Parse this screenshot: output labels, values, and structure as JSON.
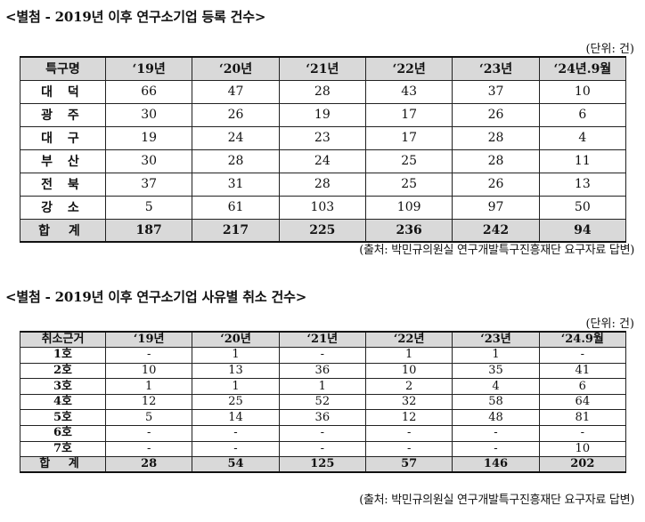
{
  "section1": {
    "title": "<별첨 - 2019년 이후 연구소기업 등록 건수>",
    "unit": "(단위: 건)",
    "headers": [
      "특구명",
      "‘19년",
      "‘20년",
      "‘21년",
      "‘22년",
      "‘23년",
      "‘24년.9월"
    ],
    "rows": [
      [
        "대 덕",
        "66",
        "47",
        "28",
        "43",
        "37",
        "10"
      ],
      [
        "광 주",
        "30",
        "26",
        "19",
        "17",
        "26",
        "6"
      ],
      [
        "대 구",
        "19",
        "24",
        "23",
        "17",
        "28",
        "4"
      ],
      [
        "부 산",
        "30",
        "28",
        "24",
        "25",
        "28",
        "11"
      ],
      [
        "전 북",
        "37",
        "31",
        "28",
        "25",
        "26",
        "13"
      ],
      [
        "강 소",
        "5",
        "61",
        "103",
        "109",
        "97",
        "50"
      ]
    ],
    "total": [
      "합 계",
      "187",
      "217",
      "225",
      "236",
      "242",
      "94"
    ],
    "source": "(출처: 박민규의원실 연구개발특구진흥재단 요구자료 답변)"
  },
  "section2": {
    "title": "<별첨 - 2019년 이후 연구소기업 사유별 취소 건수>",
    "unit": "(단위: 건)",
    "headers": [
      "취소근거",
      "‘19년",
      "‘20년",
      "‘21년",
      "‘22년",
      "‘23년",
      "‘24.9월"
    ],
    "rows": [
      [
        "1호",
        "-",
        "1",
        "-",
        "1",
        "1",
        "-"
      ],
      [
        "2호",
        "10",
        "13",
        "36",
        "10",
        "35",
        "41"
      ],
      [
        "3호",
        "1",
        "1",
        "1",
        "2",
        "4",
        "6"
      ],
      [
        "4호",
        "12",
        "25",
        "52",
        "32",
        "58",
        "64"
      ],
      [
        "5호",
        "5",
        "14",
        "36",
        "12",
        "48",
        "81"
      ],
      [
        "6호",
        "-",
        "-",
        "-",
        "-",
        "-",
        "-"
      ],
      [
        "7호",
        "-",
        "-",
        "-",
        "-",
        "-",
        "10"
      ]
    ],
    "total": [
      "합 계",
      "28",
      "54",
      "125",
      "57",
      "146",
      "202"
    ],
    "source": "(출처: 박민규의원실 연구개발특구진흥재단 요구자료 답변)"
  }
}
